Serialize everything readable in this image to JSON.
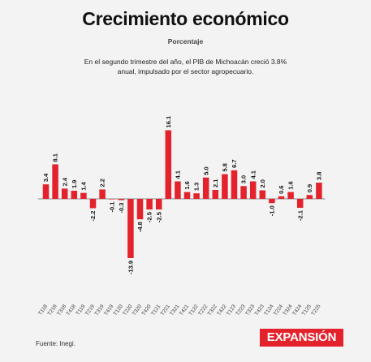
{
  "header": {
    "title": "Crecimiento económico",
    "subtitle": "Porcentaje",
    "description": "En el segundo trimestre del año, el PIB de Michoacán creció 3.8% anual, impulsado por el sector agropecuario."
  },
  "footer": {
    "source": "Fuente: Inegi.",
    "logo_text": "EXPANSIÓN"
  },
  "colors": {
    "bar": "#e3222c",
    "axis": "#666666",
    "logo_bg": "#e3222c"
  },
  "chart_data": {
    "type": "bar",
    "title": "Crecimiento económico",
    "ylabel": "Porcentaje",
    "categories": [
      "T118",
      "T218",
      "T318",
      "T418",
      "T119",
      "T219",
      "T319",
      "T419",
      "T120",
      "T220",
      "T320",
      "T420",
      "T121",
      "T221",
      "T321",
      "T421",
      "T122",
      "T222",
      "T322",
      "T422",
      "T123",
      "T223",
      "T323",
      "T423",
      "T124",
      "T224",
      "T324",
      "T424",
      "T125",
      "T225"
    ],
    "values": [
      3.4,
      8.1,
      2.4,
      1.9,
      1.4,
      -2.2,
      2.2,
      -0.1,
      -0.3,
      -13.9,
      -4.8,
      -2.5,
      -2.5,
      16.1,
      4.1,
      1.6,
      1.3,
      5.0,
      2.1,
      5.8,
      6.7,
      3.0,
      4.1,
      2.0,
      -1.0,
      0.6,
      1.6,
      -2.1,
      0.9,
      3.8
    ],
    "labels": [
      "3.4",
      "8.1",
      "2.4",
      "1.9",
      "1.4",
      "-2.2",
      "2.2",
      "-0.1",
      "-0.3",
      "-13.9",
      "-4.8",
      "-2.5",
      "-2.5",
      "16.1",
      "4.1",
      "1.6",
      "1.3",
      "5.0",
      "2.1",
      "5.8",
      "6.7",
      "3.0",
      "4.1",
      "2.0",
      "-1.0",
      "0.6",
      "1.6",
      "-2.1",
      "0.9",
      "3.8"
    ],
    "grid": false,
    "legend": "none"
  }
}
